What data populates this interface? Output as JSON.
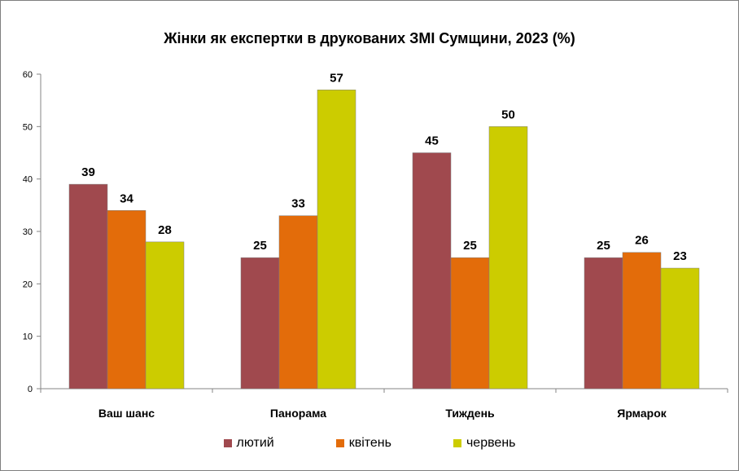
{
  "chart_data": {
    "type": "bar",
    "title": "Жінки як експертки в друкованих ЗМІ Сумщини, 2023 (%)",
    "categories": [
      "Ваш шанс",
      "Панорама",
      "Тиждень",
      "Ярмарок"
    ],
    "series": [
      {
        "name": "лютий",
        "color": "#a0494e",
        "values": [
          39,
          25,
          45,
          25
        ]
      },
      {
        "name": "квітень",
        "color": "#e36c0a",
        "values": [
          34,
          33,
          25,
          26
        ]
      },
      {
        "name": "червень",
        "color": "#cccc00",
        "values": [
          28,
          57,
          50,
          23
        ]
      }
    ],
    "ylim": [
      0,
      60
    ],
    "yticks": [
      0,
      10,
      20,
      30,
      40,
      50,
      60
    ],
    "grid": false,
    "legend_position": "bottom"
  }
}
